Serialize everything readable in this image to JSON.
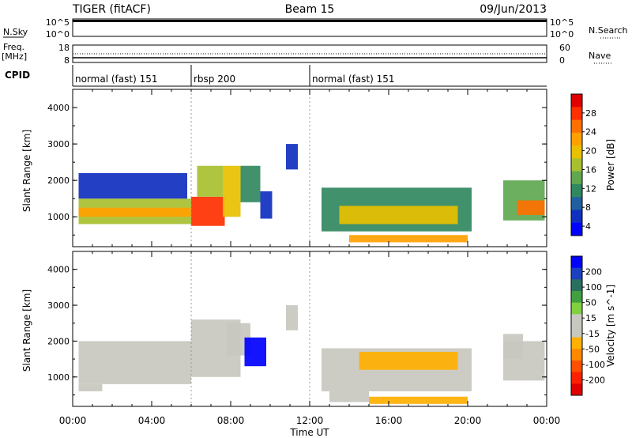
{
  "header": {
    "left": "TIGER (fitACF)",
    "center": "Beam 15",
    "right": "09/Jun/2013"
  },
  "side_labels": {
    "nsky": "N.Sky",
    "freq": "Freq.",
    "freq_unit": "[MHz]",
    "cpid": "CPID",
    "nsearch": "N.Search",
    "nave": "Nave"
  },
  "strips": {
    "nsky_ticks": [
      "10^5",
      "10^0"
    ],
    "freq_ticks": [
      "18",
      "8"
    ],
    "nave_ticks": [
      "60",
      "0"
    ]
  },
  "cpid_segments": [
    {
      "label": "normal (fast) 151",
      "start_h": 0,
      "end_h": 6
    },
    {
      "label": "rbsp 200",
      "start_h": 6,
      "end_h": 12
    },
    {
      "label": "normal (fast) 151",
      "start_h": 12,
      "end_h": 24
    }
  ],
  "colorbars": {
    "power": {
      "title": "Power [dB]",
      "ticks": [
        "28",
        "24",
        "20",
        "16",
        "12",
        "8",
        "4"
      ],
      "colors": [
        "#e00000",
        "#ff3000",
        "#ff7000",
        "#ffa000",
        "#e8c000",
        "#a8c030",
        "#60a850",
        "#308860",
        "#2060a0",
        "#1030c0",
        "#0000ff"
      ]
    },
    "velocity": {
      "title": "Velocity [m s^-1]",
      "ticks": [
        "200",
        "100",
        "50",
        "15",
        "-15",
        "-50",
        "-100",
        "-200"
      ],
      "colors": [
        "#0000ff",
        "#1a40c0",
        "#2a7060",
        "#40a040",
        "#80d040",
        "#c8c8c0",
        "#c8c8c0",
        "#ffb000",
        "#ff8800",
        "#ff5000",
        "#ff2000",
        "#e00000"
      ]
    }
  },
  "axes": {
    "ylabel": "Slant Range [km]",
    "xlabel": "Time UT",
    "x_ticks": [
      "00:00",
      "04:00",
      "08:00",
      "12:00",
      "16:00",
      "20:00",
      "00:00"
    ],
    "y_ticks": [
      "4000",
      "3000",
      "2000",
      "1000"
    ]
  },
  "chart_data": [
    {
      "type": "heatmap",
      "title": "",
      "xlabel": "Time UT",
      "ylabel": "Slant Range [km]",
      "x_unit": "hours UT",
      "xlim": [
        0,
        24
      ],
      "ylim": [
        180,
        4500
      ],
      "colorbar": "Power [dB]",
      "clim": [
        2,
        30
      ],
      "regions": [
        {
          "t0": 0.3,
          "t1": 6.0,
          "r0": 800,
          "r1": 1500,
          "v": 16
        },
        {
          "t0": 0.3,
          "t1": 6.0,
          "r0": 1000,
          "r1": 1250,
          "v": 22
        },
        {
          "t0": 0.3,
          "t1": 5.8,
          "r0": 1500,
          "r1": 2200,
          "v": 6
        },
        {
          "t0": 6.0,
          "t1": 7.7,
          "r0": 750,
          "r1": 1550,
          "v": 25
        },
        {
          "t0": 6.3,
          "t1": 7.6,
          "r0": 1550,
          "r1": 2400,
          "v": 17
        },
        {
          "t0": 7.6,
          "t1": 8.5,
          "r0": 1000,
          "r1": 2400,
          "v": 18
        },
        {
          "t0": 8.5,
          "t1": 9.5,
          "r0": 1400,
          "r1": 2400,
          "v": 10
        },
        {
          "t0": 9.5,
          "t1": 10.1,
          "r0": 950,
          "r1": 1700,
          "v": 6
        },
        {
          "t0": 10.8,
          "t1": 11.4,
          "r0": 2300,
          "r1": 3000,
          "v": 6
        },
        {
          "t0": 12.6,
          "t1": 20.2,
          "r0": 600,
          "r1": 1800,
          "v": 10
        },
        {
          "t0": 13.5,
          "t1": 19.5,
          "r0": 800,
          "r1": 1300,
          "v": 18
        },
        {
          "t0": 14.0,
          "t1": 20.0,
          "r0": 300,
          "r1": 500,
          "v": 22
        },
        {
          "t0": 21.8,
          "t1": 23.9,
          "r0": 900,
          "r1": 2000,
          "v": 14
        },
        {
          "t0": 22.5,
          "t1": 23.9,
          "r0": 1050,
          "r1": 1450,
          "v": 24
        }
      ]
    },
    {
      "type": "heatmap",
      "title": "",
      "xlabel": "Time UT",
      "ylabel": "Slant Range [km]",
      "x_unit": "hours UT",
      "xlim": [
        0,
        24
      ],
      "ylim": [
        180,
        4500
      ],
      "colorbar": "Velocity [m s^-1]",
      "clim": [
        -250,
        250
      ],
      "regions": [
        {
          "t0": 0.3,
          "t1": 6.0,
          "r0": 800,
          "r1": 2000,
          "v": 0
        },
        {
          "t0": 0.3,
          "t1": 1.5,
          "r0": 600,
          "r1": 800,
          "v": 30
        },
        {
          "t0": 6.0,
          "t1": 8.5,
          "r0": 1000,
          "r1": 2600,
          "v": 0
        },
        {
          "t0": 7.8,
          "t1": 9.0,
          "r0": 1600,
          "r1": 2500,
          "v": -40
        },
        {
          "t0": 8.7,
          "t1": 9.8,
          "r0": 1300,
          "r1": 2100,
          "v": 220
        },
        {
          "t0": 10.8,
          "t1": 11.4,
          "r0": 2300,
          "r1": 3000,
          "v": 0
        },
        {
          "t0": 12.6,
          "t1": 20.2,
          "r0": 600,
          "r1": 1800,
          "v": 0
        },
        {
          "t0": 14.5,
          "t1": 19.5,
          "r0": 1200,
          "r1": 1700,
          "v": -80
        },
        {
          "t0": 13.0,
          "t1": 15.0,
          "r0": 300,
          "r1": 600,
          "v": 40
        },
        {
          "t0": 15.0,
          "t1": 20.0,
          "r0": 250,
          "r1": 450,
          "v": -60
        },
        {
          "t0": 21.8,
          "t1": 23.9,
          "r0": 900,
          "r1": 2000,
          "v": 0
        },
        {
          "t0": 21.8,
          "t1": 22.8,
          "r0": 1500,
          "r1": 2200,
          "v": 40
        }
      ]
    }
  ]
}
